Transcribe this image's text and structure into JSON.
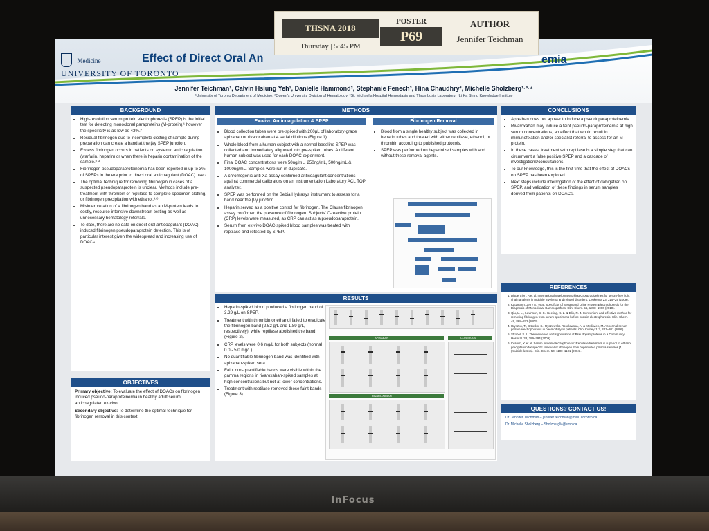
{
  "card": {
    "event": "THSNA 2018",
    "time": "Thursday | 5:45 PM",
    "poster_label": "POSTER",
    "poster_number": "P69",
    "author_label": "AUTHOR",
    "author_name": "Jennifer Teichman"
  },
  "poster": {
    "logo_medicine": "Medicine",
    "logo_university": "UNIVERSITY OF TORONTO",
    "title_left": "Effect of Direct Oral An",
    "title_right": "emia",
    "authors": "Jennifer Teichman¹, Calvin Hsiung Yeh¹, Danielle Hammond², Stephanie Fenech³, Hina Chaudhry³, Michelle Sholzberg¹·³·⁴",
    "affiliations": "¹University of Toronto Department of Medicine, ²Queen's University Division of Hematology, ³St. Michael's Hospital Hemostasis and Thrombosis Laboratory, ⁴Li Ka Shing Knowledge Institute",
    "background": {
      "heading": "BACKGROUND",
      "bullets": [
        "High-resolution serum protein electrophoresis (SPEP) is the initial test for detecting monoclonal paraproteins (M-protein),¹ however the specificity is as low as 43%.²",
        "Residual fibrinogen due to incomplete clotting of sample during preparation can create a band at the β/γ SPEP junction.",
        "Excess fibrinogen occurs in patients on systemic anticoagulation (warfarin, heparin) or when there is heparin contamination of the sample.³·⁴",
        "Fibrinogen pseudoparaproteinemia has been reported in up to 3% of SPEPs in the era prior to direct oral anticoagulant (DOAC) use.⁵",
        "The optimal technique for removing fibrinogen in cases of a suspected pseudoparaprotein is unclear. Methods include pre-treatment with thrombin or reptilase to complete specimen clotting, or fibrinogen precipitation with ethanol.³·⁶",
        "Misinterpretation of a fibrinogen band as an M-protein leads to costly, resource intensive downstream testing as well as unnecessary hematology referrals.",
        "To date, there are no data on direct oral anticoagulant (DOAC) induced fibrinogen pseudoparaprotein detection. This is of particular interest given the widespread and increasing use of DOACs."
      ]
    },
    "objectives": {
      "heading": "OBJECTIVES",
      "primary_label": "Primary objective:",
      "primary_text": " To evaluate the effect of DOACs on fibrinogen induced pseudo-paraproteinemia in healthy adult serum anticoagulated ex-vivo.",
      "secondary_label": "Secondary objective:",
      "secondary_text": " To determine the optimal technique for fibrinogen removal in this context."
    },
    "methods": {
      "heading": "METHODS",
      "sub1": "Ex-vivo Anticoagulation & SPEP",
      "bullets1": [
        "Blood collection tubes were pre-spiked with 200μL of laboratory-grade apixaban or rivaroxaban at 4 serial dilutions (Figure 1).",
        "Whole blood from a human subject with a normal baseline SPEP was collected and immediately aliquoted into pre-spiked tubes. A different human subject was used for each DOAC experiment.",
        "Final DOAC concentrations were 50ng/mL, 250ng/mL, 500ng/mL & 1000ng/mL. Samples were run in duplicate.",
        "A chromogenic anti-Xa assay confirmed anticoagulant concentrations against commercial calibrators on an Instrumentation Laboratory ACL TOP analyzer.",
        "SPEP was performed on the Sebia Hydrasys instrument to assess for a band near the β/γ junction.",
        "Heparin served as a positive control for fibrinogen. The Clauss fibrinogen assay confirmed the presence of fibrinogen. Subjects' C-reactive protein (CRP) levels were measured, as CRP can act as a pseudoparaprotein.",
        "Serum from ex-vivo DOAC-spiked blood samples was treated with reptilase and retested by SPEP."
      ],
      "sub2": "Fibrinogen Removal",
      "bullets2": [
        "Blood from a single healthy subject was collected in heparin tubes and treated with either reptilase, ethanol, or thrombin according to published protocols.",
        "SPEP was performed on heparinized samples with and without these removal agents."
      ]
    },
    "results": {
      "heading": "RESULTS",
      "bullets": [
        "Heparin-spiked blood produced a fibrinogen band of 3.29 g/L on SPEP.",
        "Treatment with thrombin or ethanol failed to eradicate the fibrinogen band (2.52 g/L and 1.89 g/L, respectively), while reptilase abolished the band (Figure 2).",
        "CRP levels were 0.6 mg/L for both subjects (normal 0.0 - 5.0 mg/L).",
        "No quantifiable fibrinogen band was identified with apixaban-spiked sera.",
        "Faint non-quantifiable bands were visible within the gamma regions in rivaroxaban-spiked samples at high concentrations but not at lower concentrations.",
        "Treatment with reptilase removed these faint bands (Figure 3)."
      ],
      "fig_apixaban": "APIXABAN",
      "fig_rivaroxaban": "RIVAROXABAN",
      "fig_controls": "CONTROLS"
    },
    "conclusions": {
      "heading": "CONCLUSIONS",
      "bullets": [
        "Apixaban does not appear to induce a pseudoparaproteinemia.",
        "Rivaroxaban may induce a faint pseudo-paraproteinemia at high serum concentrations, an effect that would result in immunofixation and/or specialist referral to assess for an M-protein.",
        "In these cases, treatment with reptilase is a simple step that can circumvent a false positive SPEP and a cascade of investigations/consultations.",
        "To our knowledge, this is the first time that the effect of DOACs on SPEP has been explored.",
        "Next steps include interrogation of the effect of dabigatran on SPEP, and validation of these findings in serum samples derived from patients on DOACs."
      ]
    },
    "references": {
      "heading": "REFERENCES",
      "items": [
        "Dispenzieri, A et al. International Myeloma Working Group guidelines for serum-free light chain analysis in multiple myeloma and related disorders. Leukemia 23, 215–24 (2009).",
        "Katzmann, Jerry A., et al. Specificity of Serum and Urine Protein Electrophoresis for the Diagnosis of Monoclonal Gammopathies. Clin. Chem. 56, 1898–1900 (2010).",
        "Qiu, L. L., Levinson, S. S., Keeling, K. L. & Elin, R. J. Convenient and effective method for removing fibrinogen from serum specimens before protein electrophoresis. Clin. Chem. 49, 868–872 (2003).",
        "Hryszko, T., Brzosko, S., Rydzewska-Rosolowska, A. & Mysliwiec, M. Abnormal serum protein electrophoresis in haemodialysis patients. Clin. Kidney J. 3, 201–201 (2009).",
        "Strobel, S. L. The incidence and significance of Pseudoparaproteins in a Community Hospital. 38, 289–294 (2009).",
        "Ibrahim, Y. et al. Serum protein electrophoresis: Reptilase treatment is superior to ethanol precipitation for specific removal of fibrinogen from heparinized plasma samples [1] (multiple letters). Clin. Chem. 50, 1100–1101 (2004)."
      ]
    },
    "contact": {
      "heading": "QUESTIONS? CONTACT US!",
      "line1": "Dr. Jennifer Teichman – jennifer.teichman@mail.utoronto.ca",
      "line2": "Dr. Michelle Sholzberg – SholzbergM@smh.ca"
    }
  },
  "monitor_brand": "InFocus",
  "colors": {
    "header_blue": "#1f4f8a",
    "subheader_blue": "#3a6aa3",
    "title_blue": "#0b3f7a",
    "card_dark": "#3c3a35"
  }
}
